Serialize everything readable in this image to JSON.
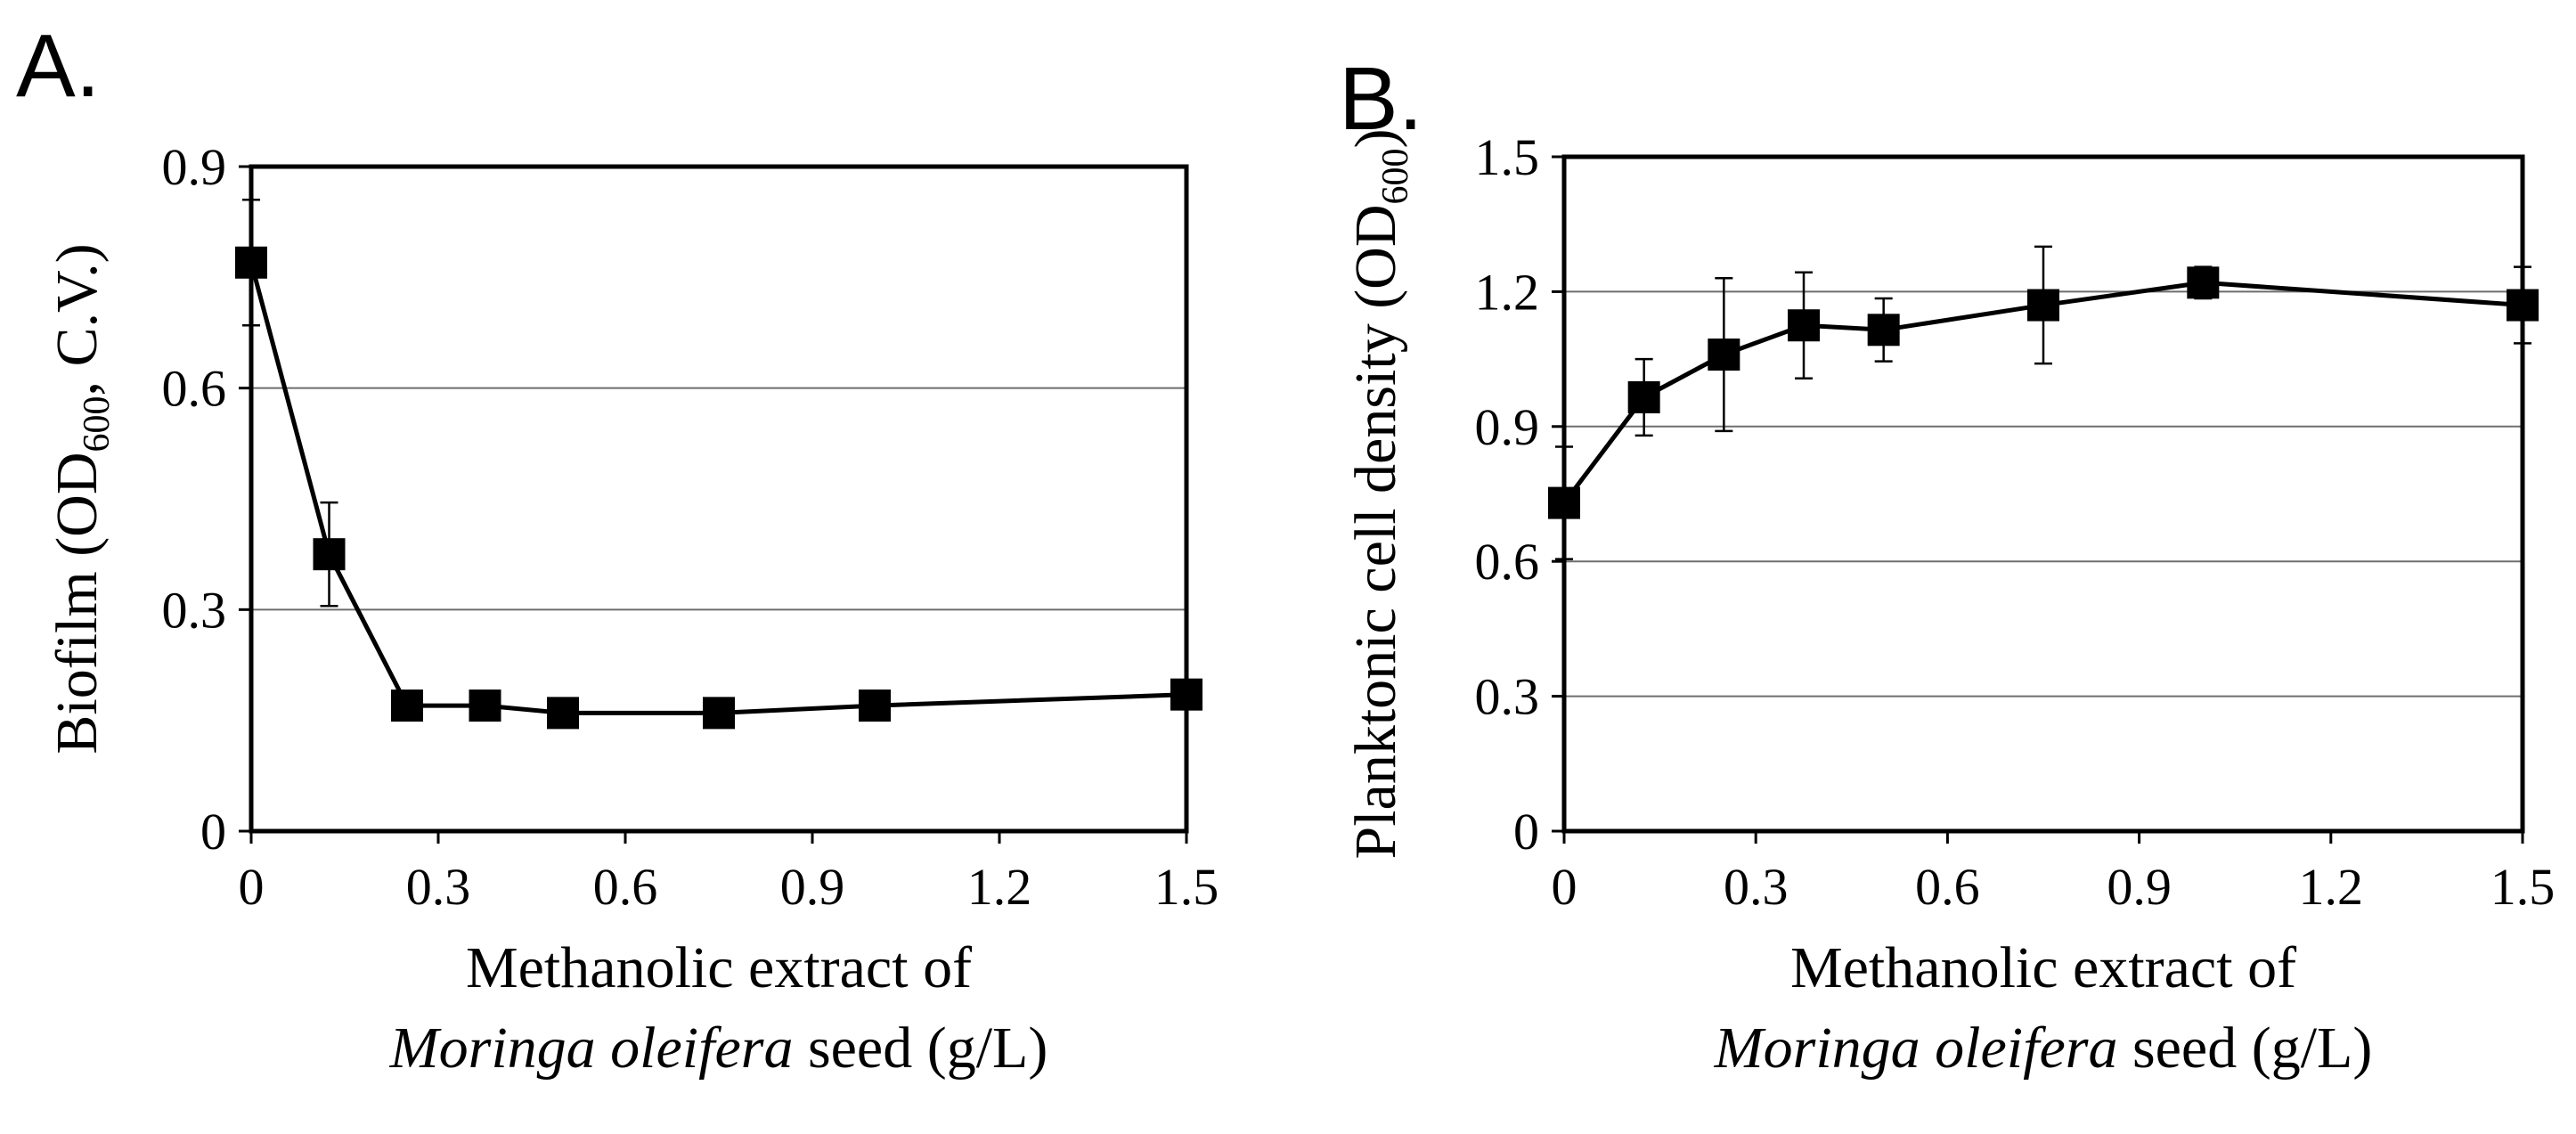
{
  "chart_data": [
    {
      "type": "line",
      "panel": "A.",
      "xlabel_line1": "Methanolic extract of",
      "xlabel_line2_italic": "Moringa oleifera",
      "xlabel_line2_rest": " seed (g/L)",
      "ylabel_pre": "Biofilm (OD",
      "ylabel_sub": "600",
      "ylabel_post": ", C.V.)",
      "xlim": [
        0,
        1.5
      ],
      "ylim": [
        0,
        0.9
      ],
      "xticks": [
        0,
        0.3,
        0.6,
        0.9,
        1.2,
        1.5
      ],
      "xtick_labels": [
        "0",
        "0.3",
        "0.6",
        "0.9",
        "1.2",
        "1.5"
      ],
      "yticks": [
        0,
        0.3,
        0.6,
        0.9
      ],
      "ytick_labels": [
        "0",
        "0.3",
        "0.6",
        "0.9"
      ],
      "grid": "horizontal",
      "marker": "square",
      "x": [
        0,
        0.125,
        0.25,
        0.375,
        0.5,
        0.75,
        1.0,
        1.5
      ],
      "y": [
        0.77,
        0.375,
        0.17,
        0.17,
        0.16,
        0.16,
        0.17,
        0.185
      ],
      "err": [
        0.085,
        0.07,
        0.012,
        0.012,
        0.012,
        0.012,
        0.015,
        0.015
      ]
    },
    {
      "type": "line",
      "panel": "B.",
      "xlabel_line1": "Methanolic extract of",
      "xlabel_line2_italic": "Moringa oleifera",
      "xlabel_line2_rest": " seed (g/L)",
      "ylabel_pre": "Planktonic cell density (OD",
      "ylabel_sub": "600",
      "ylabel_post": ")",
      "xlim": [
        0,
        1.5
      ],
      "ylim": [
        0,
        1.5
      ],
      "xticks": [
        0,
        0.3,
        0.6,
        0.9,
        1.2,
        1.5
      ],
      "xtick_labels": [
        "0",
        "0.3",
        "0.6",
        "0.9",
        "1.2",
        "1.5"
      ],
      "yticks": [
        0,
        0.3,
        0.6,
        0.9,
        1.2,
        1.5
      ],
      "ytick_labels": [
        "0",
        "0.3",
        "0.6",
        "0.9",
        "1.2",
        "1.5"
      ],
      "grid": "horizontal",
      "marker": "square",
      "x": [
        0,
        0.125,
        0.25,
        0.375,
        0.5,
        0.75,
        1.0,
        1.5
      ],
      "y": [
        0.73,
        0.965,
        1.06,
        1.125,
        1.115,
        1.17,
        1.22,
        1.17
      ],
      "err": [
        0.125,
        0.085,
        0.17,
        0.118,
        0.07,
        0.13,
        0.035,
        0.085
      ]
    }
  ]
}
